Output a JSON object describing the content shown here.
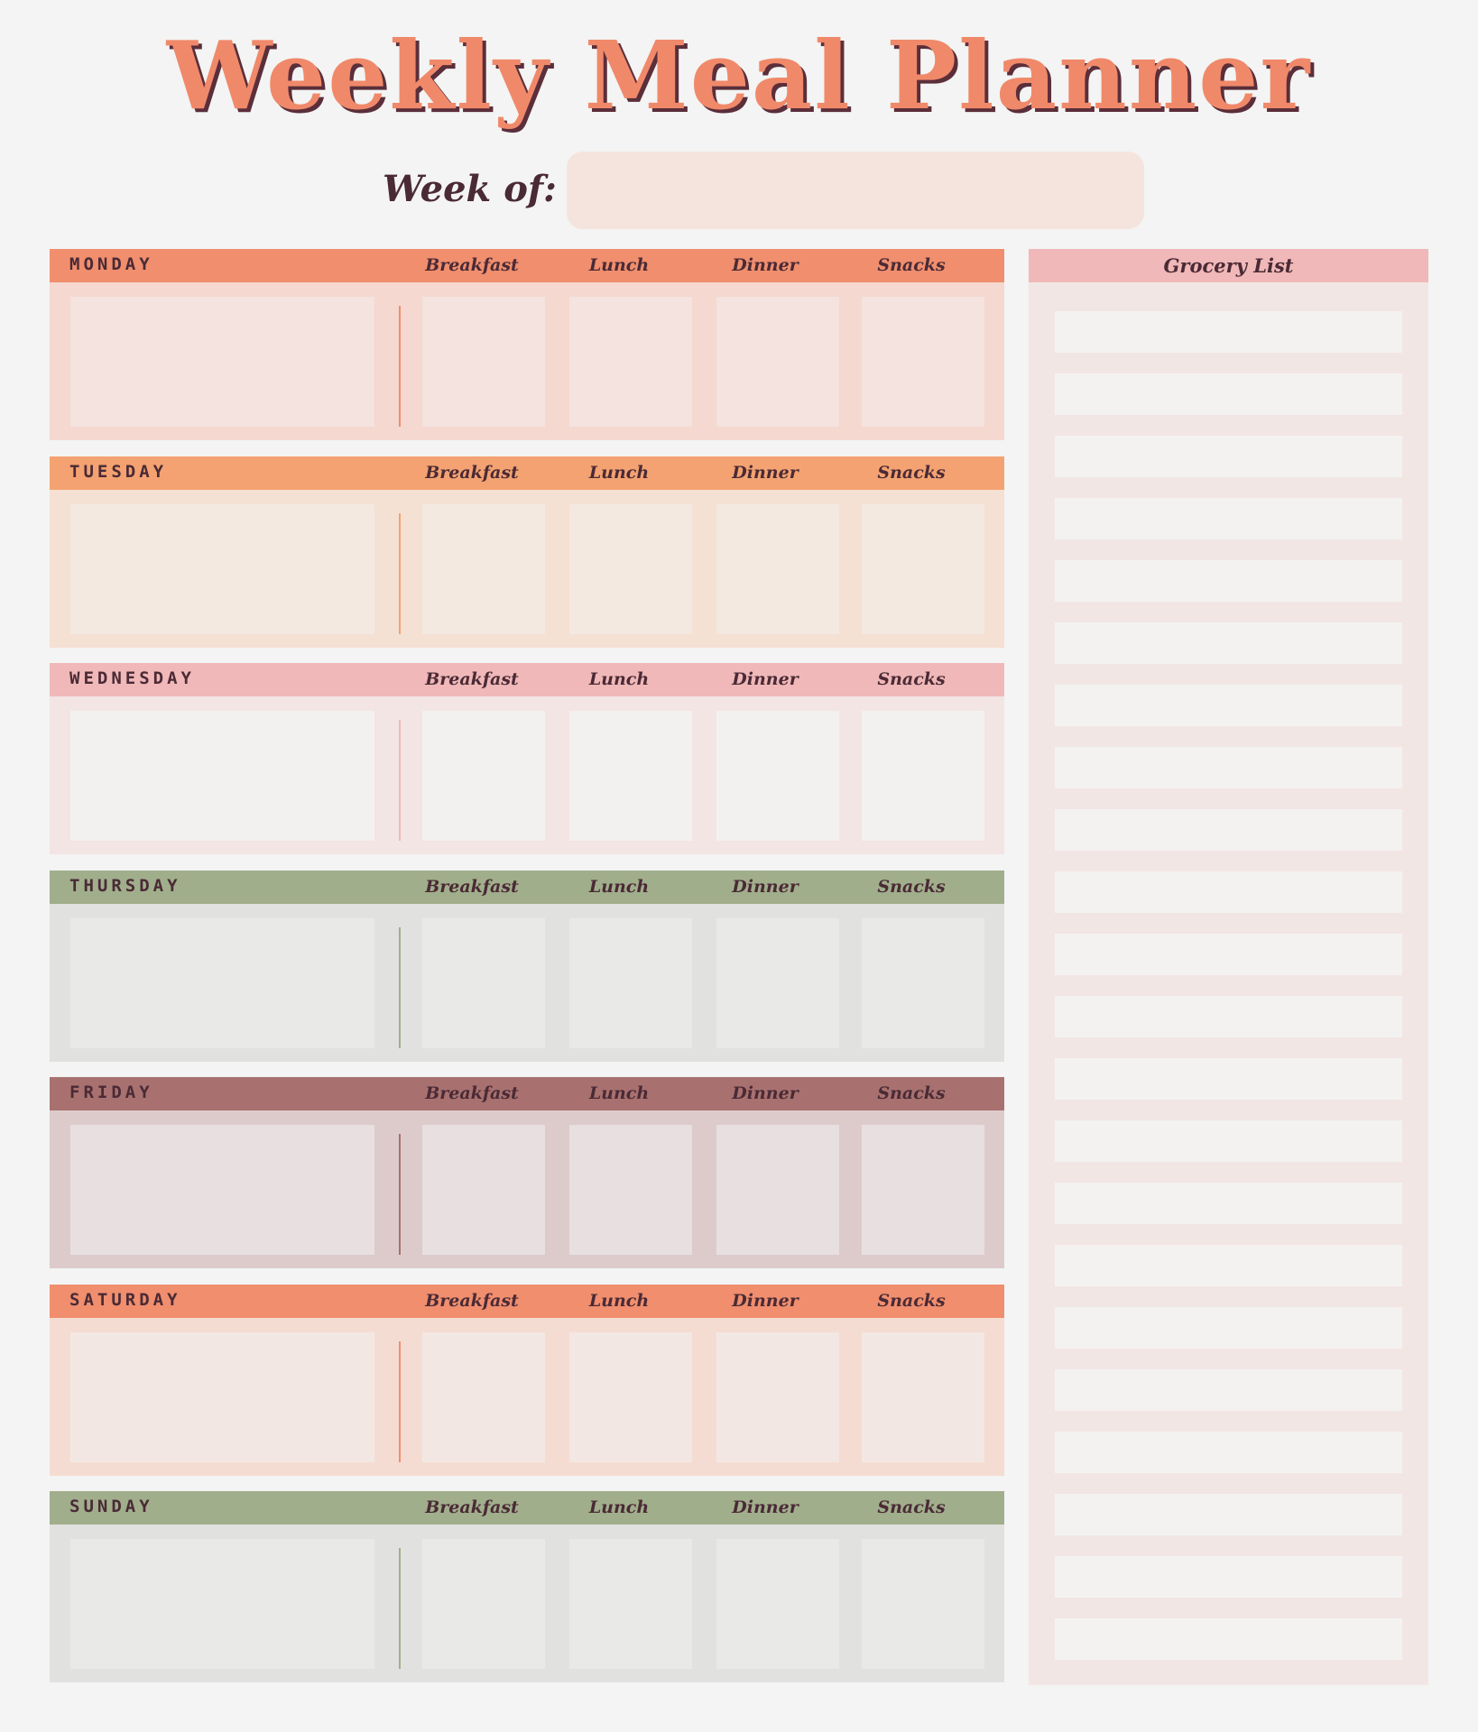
{
  "title": "Weekly Meal Planner",
  "week_of": {
    "label": "Week of:",
    "value": ""
  },
  "meal_labels": [
    "Breakfast",
    "Lunch",
    "Dinner",
    "Snacks"
  ],
  "days": [
    {
      "name": "MONDAY",
      "header_color": "#f08e6e",
      "body_color": "#f5d8cf",
      "cell_color": "#f4e3de",
      "divider_color": "#f08e6e"
    },
    {
      "name": "TUESDAY",
      "header_color": "#f4a271",
      "body_color": "#f5e0d4",
      "cell_color": "#f4e9e0",
      "divider_color": "#f4a271"
    },
    {
      "name": "WEDNESDAY",
      "header_color": "#f0b8b8",
      "body_color": "#f3e5e4",
      "cell_color": "#f3f1f0",
      "divider_color": "#f0b8b8"
    },
    {
      "name": "THURSDAY",
      "header_color": "#a1ae8c",
      "body_color": "#e1e2df",
      "cell_color": "#e9e9e7",
      "divider_color": "#a1ae8c"
    },
    {
      "name": "FRIDAY",
      "header_color": "#a8716f",
      "body_color": "#ddcbcc",
      "cell_color": "#e8dfe0",
      "divider_color": "#a8716f"
    },
    {
      "name": "SATURDAY",
      "header_color": "#f08e6e",
      "body_color": "#f5dcd2",
      "cell_color": "#f3e7e3",
      "divider_color": "#f08e6e"
    },
    {
      "name": "SUNDAY",
      "header_color": "#a1ae8c",
      "body_color": "#e1e2df",
      "cell_color": "#e9e9e7",
      "divider_color": "#a1ae8c"
    }
  ],
  "grocery_list": {
    "title": "Grocery List",
    "line_count": 22
  }
}
